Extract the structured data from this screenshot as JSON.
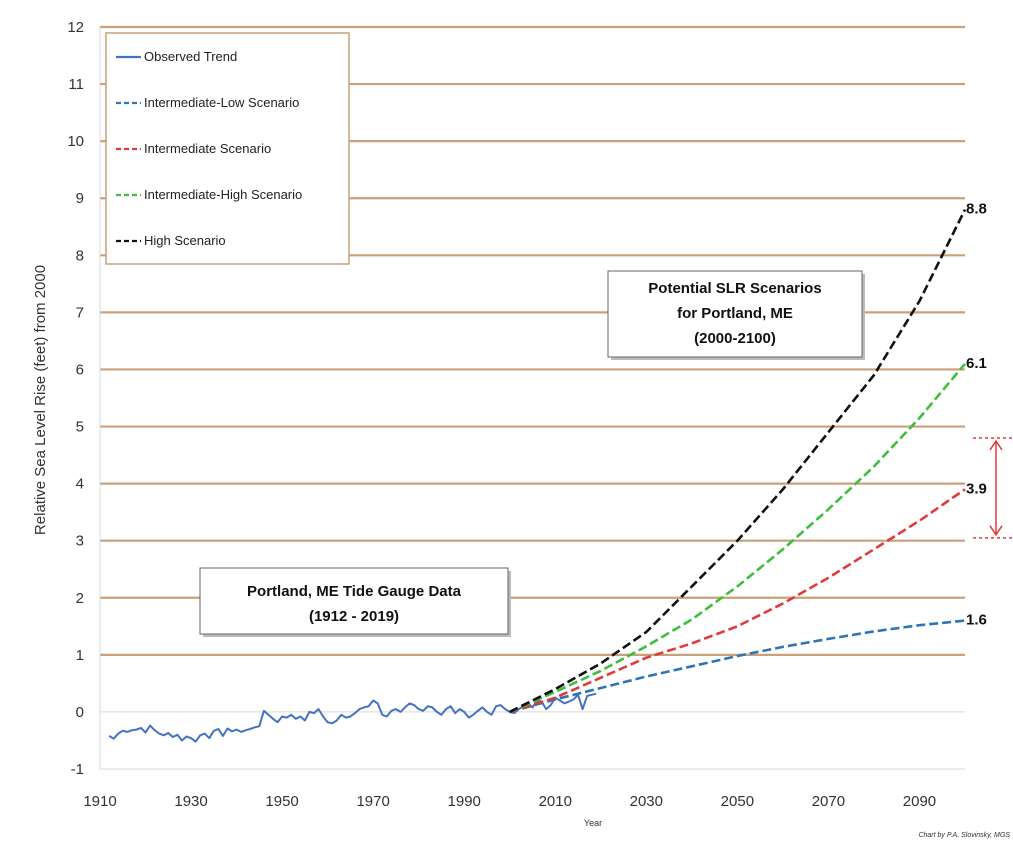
{
  "chart_data": {
    "type": "line",
    "xlabel": "Year",
    "ylabel": "Relative Sea Level Rise (feet) from 2000",
    "xlim": [
      1910,
      2100
    ],
    "ylim": [
      -1,
      12
    ],
    "x_ticks": [
      "1910",
      "1930",
      "1950",
      "1970",
      "1990",
      "2010",
      "2030",
      "2050",
      "2070",
      "2090"
    ],
    "y_ticks": [
      "-1",
      "0",
      "1",
      "2",
      "3",
      "4",
      "5",
      "6",
      "7",
      "8",
      "9",
      "10",
      "11",
      "12"
    ],
    "grid": true,
    "legend_position": "top-left",
    "credit": "Chart by P.A. Slovinsky, MGS",
    "series": [
      {
        "name": "Observed Trend",
        "color": "#4472C4",
        "dash": "solid",
        "x": [
          1912,
          1913,
          1914,
          1915,
          1916,
          1917,
          1918,
          1919,
          1920,
          1921,
          1922,
          1923,
          1924,
          1925,
          1926,
          1927,
          1928,
          1929,
          1930,
          1931,
          1932,
          1933,
          1934,
          1935,
          1936,
          1937,
          1938,
          1939,
          1940,
          1941,
          1942,
          1943,
          1944,
          1945,
          1946,
          1947,
          1948,
          1949,
          1950,
          1951,
          1952,
          1953,
          1954,
          1955,
          1956,
          1957,
          1958,
          1959,
          1960,
          1961,
          1962,
          1963,
          1964,
          1965,
          1966,
          1967,
          1968,
          1969,
          1970,
          1971,
          1972,
          1973,
          1974,
          1975,
          1976,
          1977,
          1978,
          1979,
          1980,
          1981,
          1982,
          1983,
          1984,
          1985,
          1986,
          1987,
          1988,
          1989,
          1990,
          1991,
          1992,
          1993,
          1994,
          1995,
          1996,
          1997,
          1998,
          1999,
          2000,
          2001,
          2002,
          2003,
          2004,
          2005,
          2006,
          2007,
          2008,
          2009,
          2010,
          2011,
          2012,
          2013,
          2014,
          2015,
          2016,
          2017,
          2018,
          2019
        ],
        "y": [
          -0.42,
          -0.47,
          -0.38,
          -0.33,
          -0.35,
          -0.32,
          -0.31,
          -0.28,
          -0.36,
          -0.24,
          -0.32,
          -0.38,
          -0.41,
          -0.37,
          -0.44,
          -0.4,
          -0.5,
          -0.43,
          -0.46,
          -0.52,
          -0.41,
          -0.38,
          -0.46,
          -0.33,
          -0.3,
          -0.42,
          -0.29,
          -0.34,
          -0.31,
          -0.35,
          -0.32,
          -0.3,
          -0.27,
          -0.25,
          0.02,
          -0.05,
          -0.12,
          -0.18,
          -0.08,
          -0.1,
          -0.05,
          -0.12,
          -0.08,
          -0.15,
          0.0,
          -0.02,
          0.05,
          -0.08,
          -0.18,
          -0.2,
          -0.15,
          -0.05,
          -0.1,
          -0.08,
          -0.02,
          0.05,
          0.08,
          0.1,
          0.2,
          0.15,
          -0.05,
          -0.08,
          0.02,
          0.05,
          0.0,
          0.08,
          0.15,
          0.12,
          0.05,
          0.02,
          0.1,
          0.08,
          0.0,
          -0.05,
          0.05,
          0.1,
          -0.02,
          0.05,
          0.0,
          -0.1,
          -0.05,
          0.02,
          0.08,
          0.0,
          -0.05,
          0.1,
          0.12,
          0.05,
          0.0,
          -0.02,
          0.05,
          0.1,
          0.15,
          0.08,
          0.2,
          0.18,
          0.05,
          0.12,
          0.25,
          0.2,
          0.15,
          0.18,
          0.22,
          0.3,
          0.05,
          0.28,
          0.3,
          0.32
        ]
      },
      {
        "name": "Intermediate-Low Scenario",
        "color": "#2E75B6",
        "dash": "dashed",
        "x": [
          2000,
          2010,
          2020,
          2030,
          2040,
          2050,
          2060,
          2070,
          2080,
          2090,
          2100
        ],
        "y": [
          0,
          0.22,
          0.42,
          0.62,
          0.8,
          0.98,
          1.14,
          1.28,
          1.41,
          1.52,
          1.6
        ]
      },
      {
        "name": "Intermediate Scenario",
        "color": "#E23A3A",
        "dash": "dashed",
        "x": [
          2000,
          2010,
          2020,
          2030,
          2040,
          2050,
          2060,
          2070,
          2080,
          2090,
          2100
        ],
        "y": [
          0,
          0.25,
          0.6,
          0.95,
          1.2,
          1.5,
          1.9,
          2.35,
          2.85,
          3.35,
          3.9
        ]
      },
      {
        "name": "Intermediate-High Scenario",
        "color": "#3DBE3D",
        "dash": "dashed",
        "x": [
          2000,
          2010,
          2020,
          2030,
          2040,
          2050,
          2060,
          2070,
          2080,
          2090,
          2100
        ],
        "y": [
          0,
          0.35,
          0.72,
          1.15,
          1.62,
          2.2,
          2.85,
          3.55,
          4.3,
          5.15,
          6.1
        ]
      },
      {
        "name": "High Scenario",
        "color": "#111111",
        "dash": "dashed",
        "x": [
          2000,
          2010,
          2020,
          2030,
          2040,
          2050,
          2060,
          2070,
          2080,
          2090,
          2100
        ],
        "y": [
          0,
          0.4,
          0.85,
          1.4,
          2.2,
          3.0,
          3.9,
          4.9,
          5.9,
          7.2,
          8.8
        ]
      }
    ],
    "end_labels": [
      {
        "value": 8.8,
        "text": "8.8"
      },
      {
        "value": 6.1,
        "text": "6.1"
      },
      {
        "value": 3.9,
        "text": "3.9"
      },
      {
        "value": 1.6,
        "text": "1.6"
      }
    ],
    "annotations": [
      {
        "id": "box-scenarios",
        "lines": [
          "Potential SLR Scenarios",
          "for Portland, ME",
          "(2000-2100)"
        ]
      },
      {
        "id": "box-tide",
        "lines": [
          "Portland, ME Tide Gauge Data",
          "(1912 - 2019)"
        ]
      }
    ],
    "range_marker": {
      "low": 3.05,
      "high": 4.8,
      "color": "#E23A3A"
    }
  }
}
